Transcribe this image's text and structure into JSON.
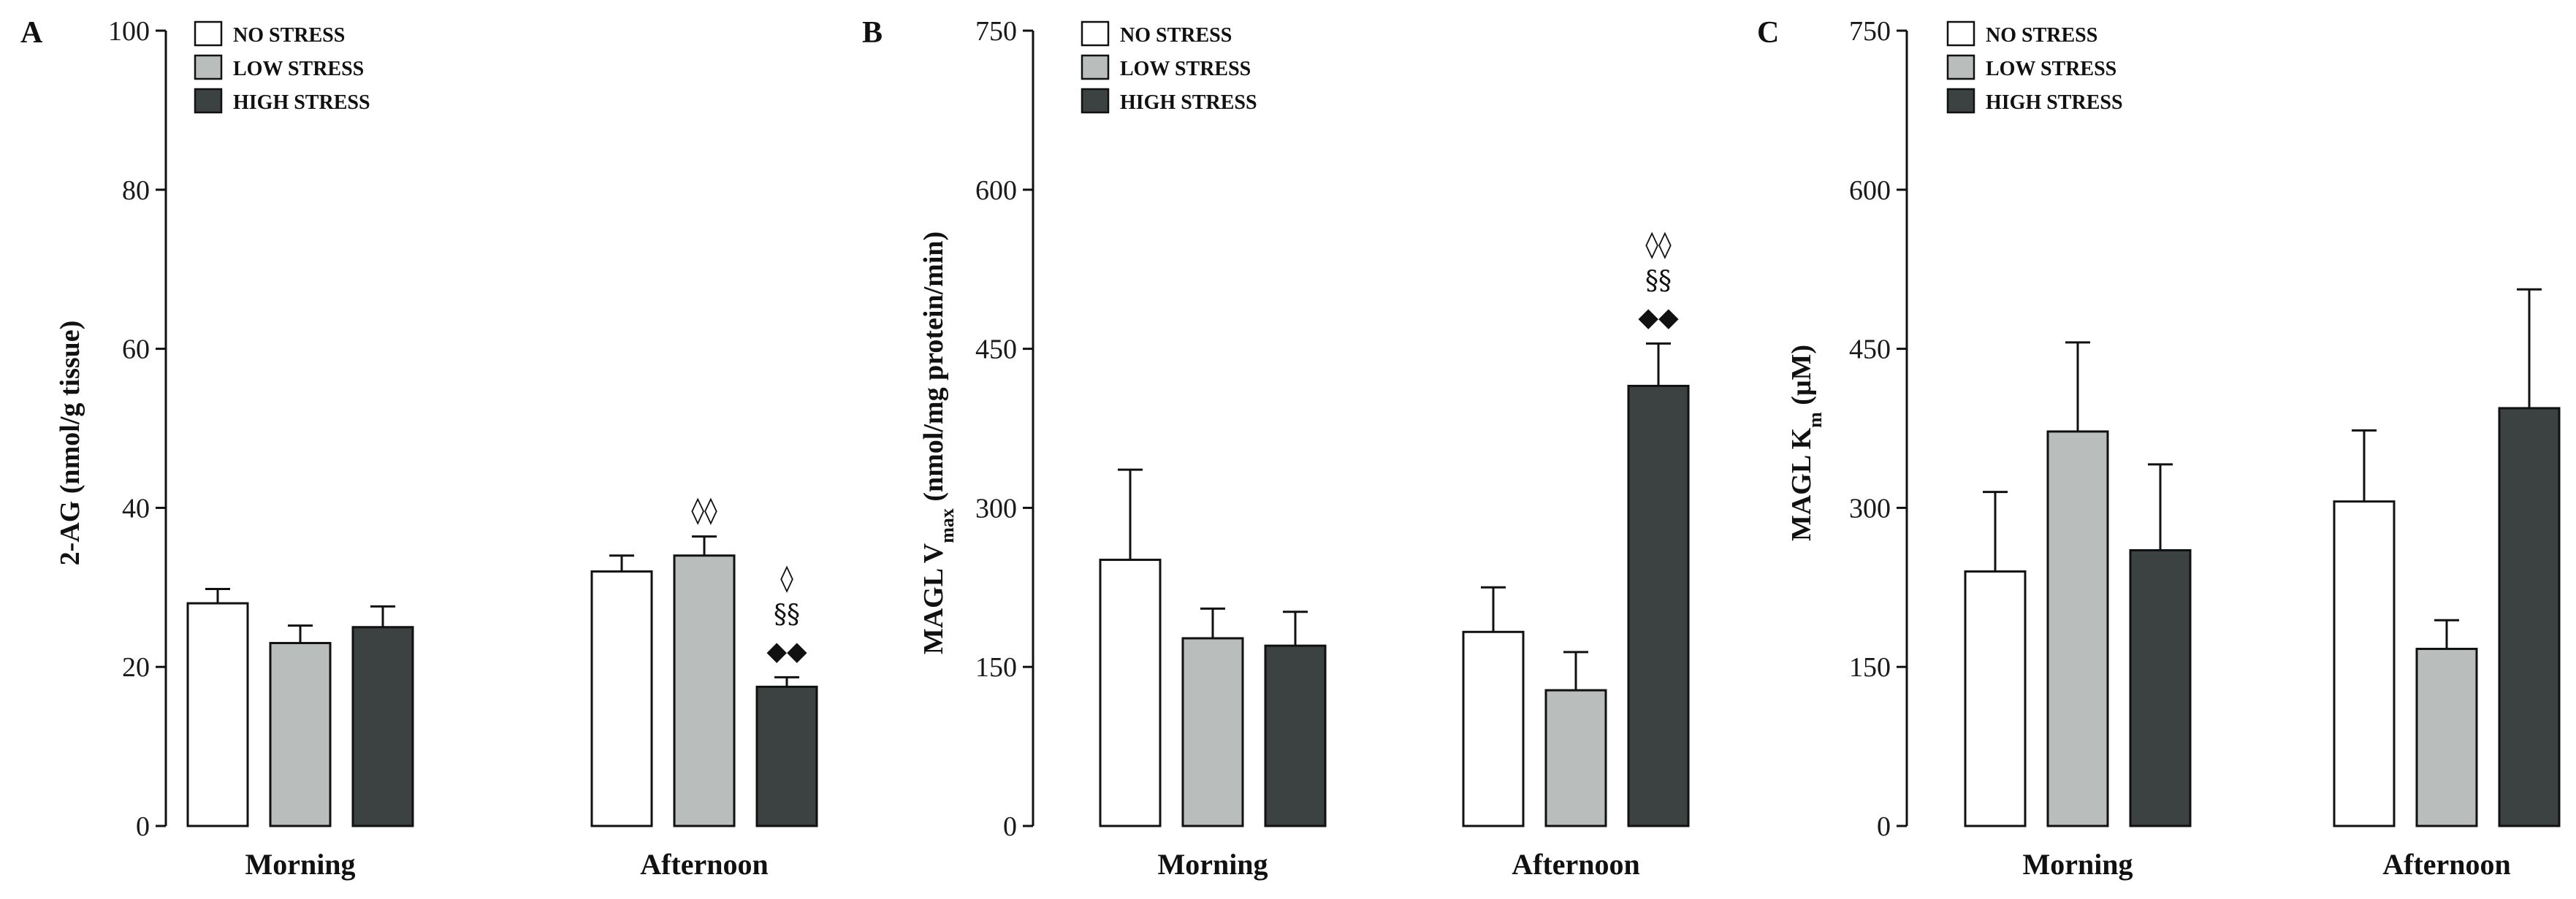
{
  "colors": {
    "no_stress": "#ffffff",
    "low_stress": "#b9bdbc",
    "high_stress": "#3c4142",
    "axis": "#111111"
  },
  "legend": {
    "no_stress": "NO STRESS",
    "low_stress": "LOW STRESS",
    "high_stress": "HIGH STRESS"
  },
  "chart_data": [
    {
      "type": "bar",
      "panel": "A",
      "ylabel": "2-AG (nmol/g tissue)",
      "ylim": [
        0,
        100
      ],
      "yticks": [
        0,
        20,
        40,
        60,
        80,
        100
      ],
      "categories": [
        "Morning",
        "Afternoon"
      ],
      "series": [
        {
          "name": "NO STRESS",
          "values": [
            28,
            32
          ],
          "errors": [
            1.8,
            2.0
          ]
        },
        {
          "name": "LOW STRESS",
          "values": [
            23,
            34
          ],
          "errors": [
            2.2,
            2.4
          ]
        },
        {
          "name": "HIGH STRESS",
          "values": [
            25,
            17.5
          ],
          "errors": [
            2.6,
            1.2
          ]
        }
      ],
      "annotations": [
        {
          "category": 1,
          "series": 1,
          "lines": [
            "◊◊"
          ]
        },
        {
          "category": 1,
          "series": 2,
          "lines": [
            "◊",
            "§§",
            "◆◆"
          ]
        }
      ]
    },
    {
      "type": "bar",
      "panel": "B",
      "ylabel_main": "MAGL V",
      "ylabel_sub": "max",
      "ylabel_rest": " (nmol/mg protein/min)",
      "ylim": [
        0,
        750
      ],
      "yticks": [
        0,
        150,
        300,
        450,
        600,
        750
      ],
      "categories": [
        "Morning",
        "Afternoon"
      ],
      "series": [
        {
          "name": "NO STRESS",
          "values": [
            251,
            183
          ],
          "errors": [
            85,
            42
          ]
        },
        {
          "name": "LOW STRESS",
          "values": [
            177,
            128
          ],
          "errors": [
            28,
            36
          ]
        },
        {
          "name": "HIGH STRESS",
          "values": [
            170,
            415
          ],
          "errors": [
            32,
            40
          ]
        }
      ],
      "annotations": [
        {
          "category": 1,
          "series": 2,
          "lines": [
            "◊◊",
            "§§",
            "◆◆"
          ]
        }
      ]
    },
    {
      "type": "bar",
      "panel": "C",
      "ylabel_main": "MAGL K",
      "ylabel_sub": "m",
      "ylabel_rest": " (μM)",
      "ylim": [
        0,
        750
      ],
      "yticks": [
        0,
        150,
        300,
        450,
        600,
        750
      ],
      "categories": [
        "Morning",
        "Afternoon"
      ],
      "series": [
        {
          "name": "NO STRESS",
          "values": [
            240,
            306
          ],
          "errors": [
            75,
            67
          ]
        },
        {
          "name": "LOW STRESS",
          "values": [
            372,
            167
          ],
          "errors": [
            84,
            27
          ]
        },
        {
          "name": "HIGH STRESS",
          "values": [
            260,
            394
          ],
          "errors": [
            81,
            112
          ]
        }
      ],
      "annotations": []
    }
  ]
}
